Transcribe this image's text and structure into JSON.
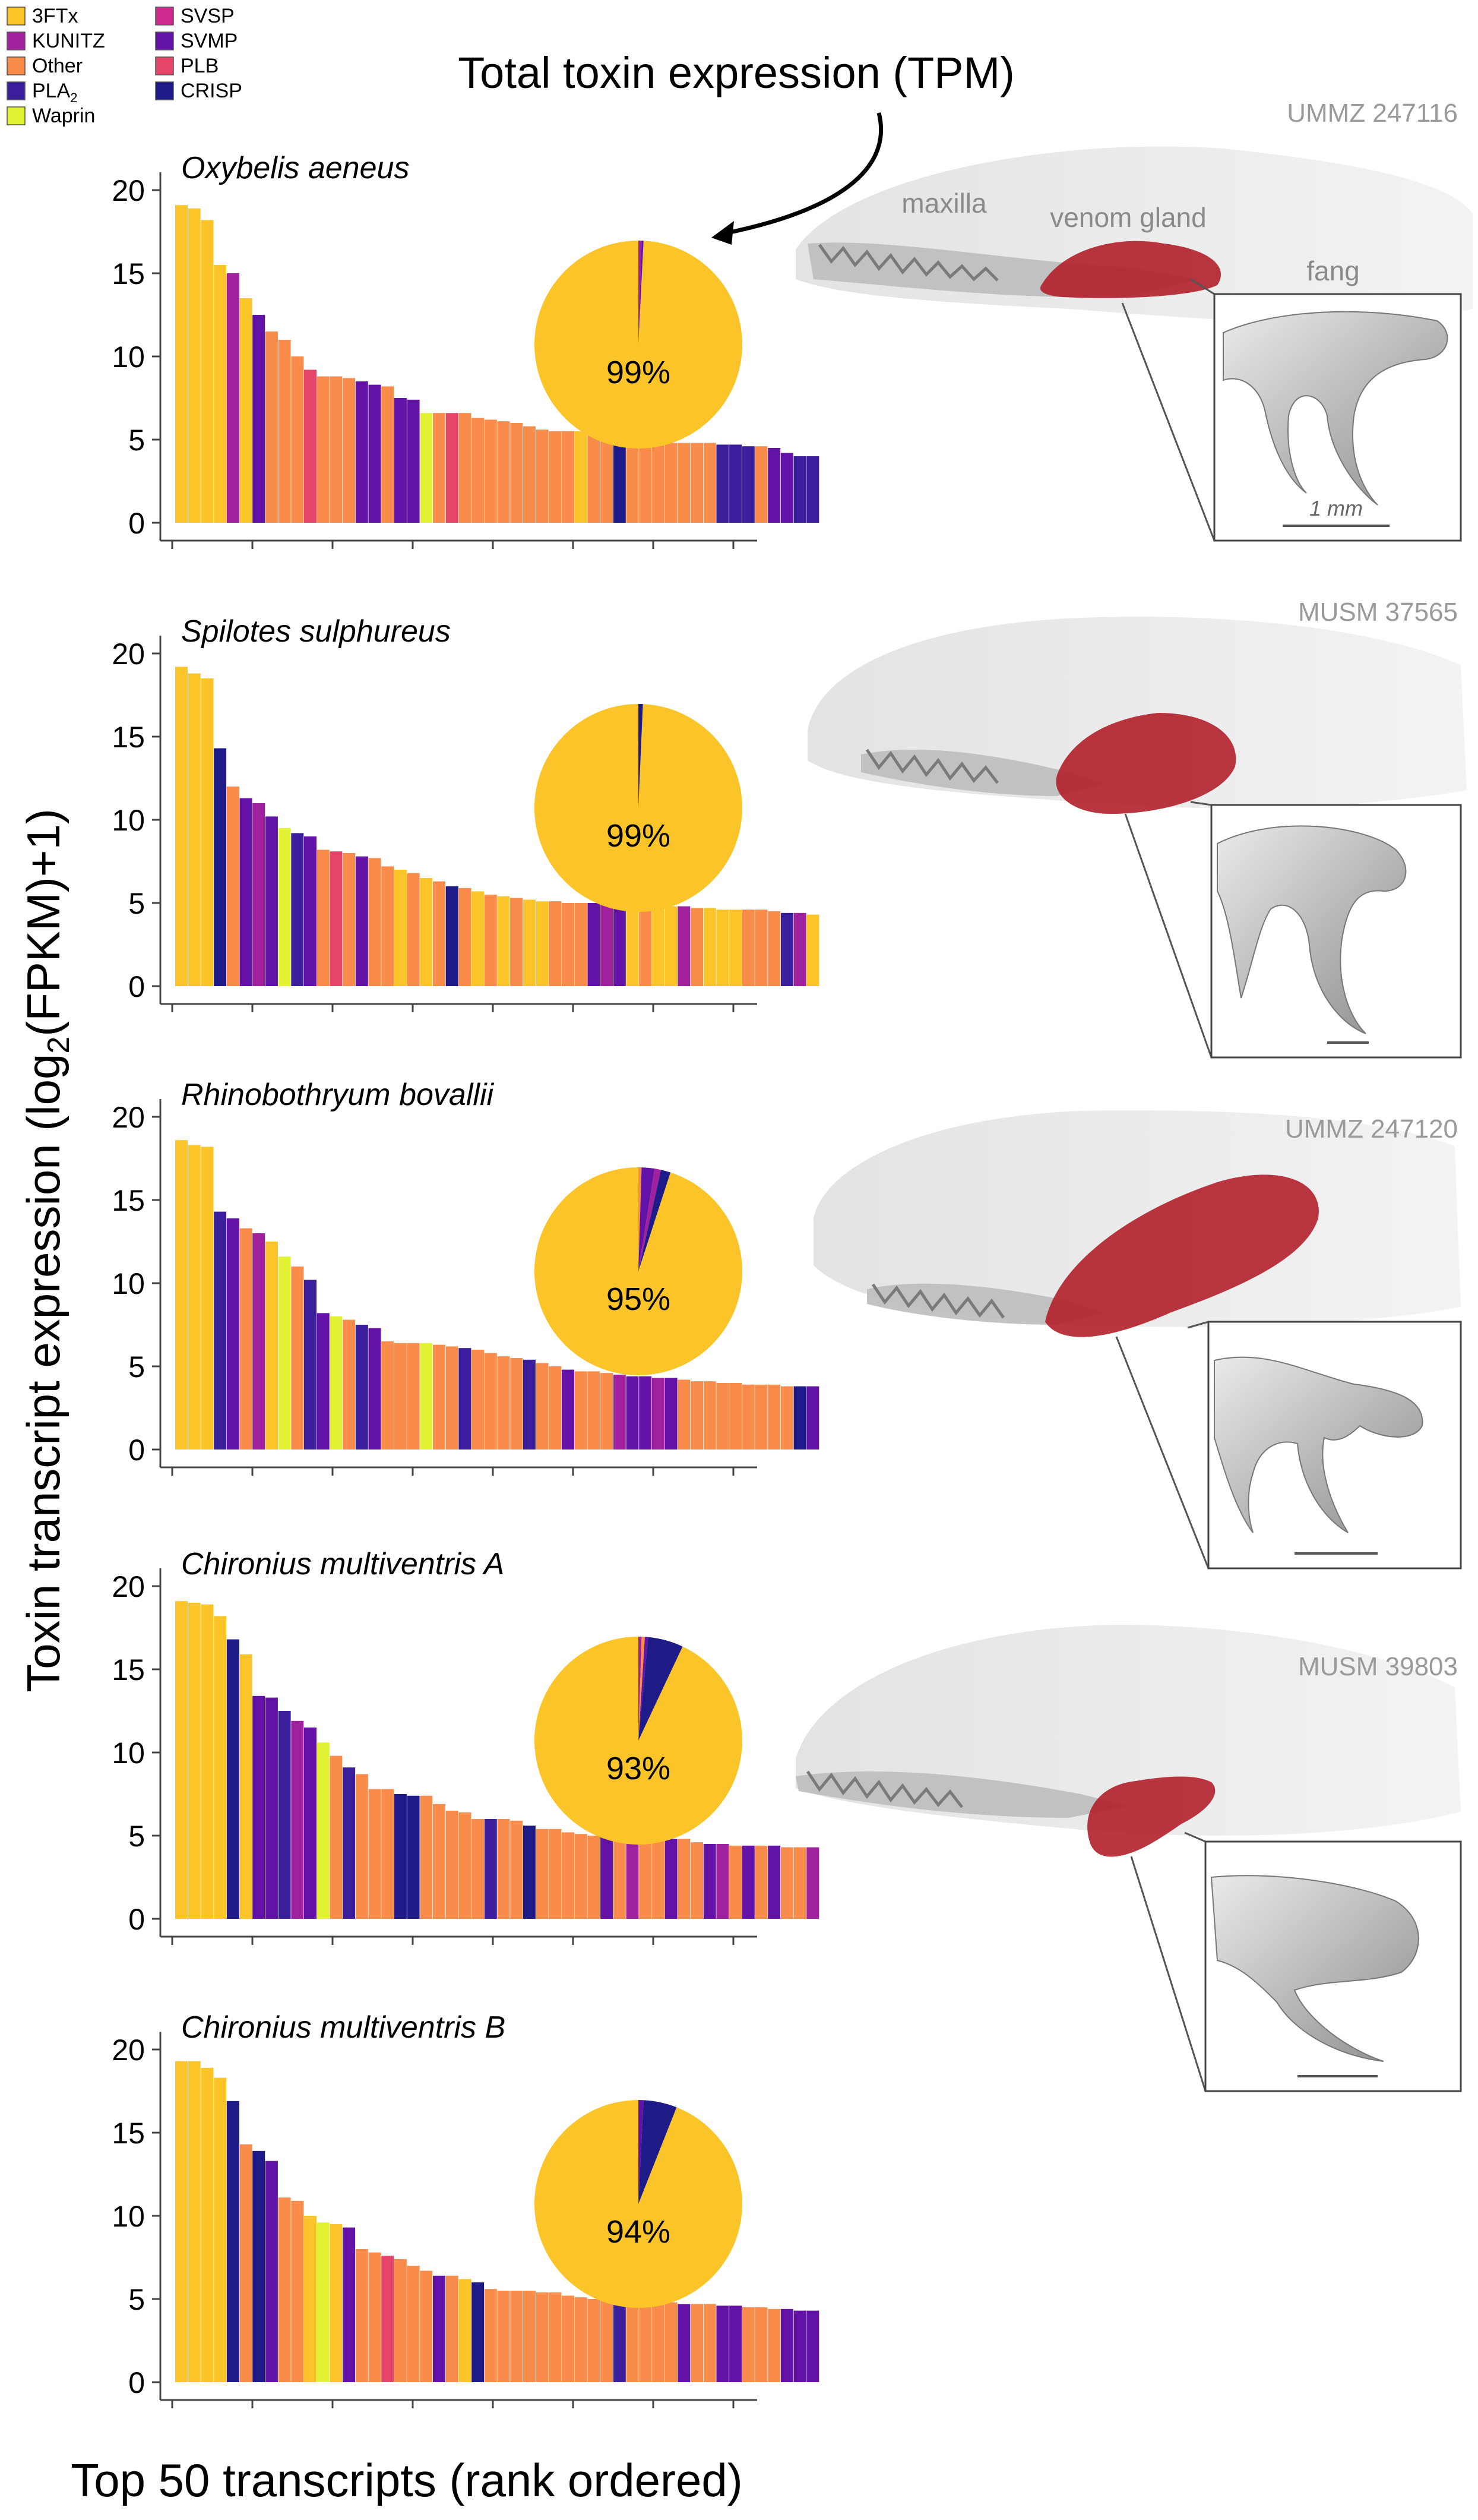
{
  "figure": {
    "y_axis_label_main": "Toxin transcript expression (log",
    "y_axis_label_sub": "2",
    "y_axis_label_tail": "(FPKM)+1)",
    "x_axis_label": "Top 50 transcripts (rank ordered)",
    "pie_annotation": "Total toxin expression (TPM)",
    "head_labels": {
      "maxilla": "maxilla",
      "venom_gland": "venom gland",
      "fang": "fang",
      "scale": "1 mm"
    },
    "specimens": [
      "UMMZ 247116",
      "MUSM 37565",
      "UMMZ 247120",
      "MUSM 39803"
    ]
  },
  "legend": [
    {
      "label": "3FTx",
      "color": "#FBC52A"
    },
    {
      "label": "KUNITZ",
      "color": "#A0219E"
    },
    {
      "label": "Other",
      "color": "#F98C4A"
    },
    {
      "label": "PLA",
      "sub": "2",
      "color": "#3A1E9B"
    },
    {
      "label": "Waprin",
      "color": "#E2F234"
    },
    {
      "label": "SVSP",
      "color": "#CE2A8E"
    },
    {
      "label": "SVMP",
      "color": "#6212A6"
    },
    {
      "label": "PLB",
      "color": "#E44568"
    },
    {
      "label": "CRISP",
      "color": "#1E1A87"
    }
  ],
  "chart_data": [
    {
      "type": "bar",
      "title": "Oxybelis aeneus",
      "categories_note": "Top 50 transcripts (rank ordered)",
      "ylim": [
        0,
        20
      ],
      "yticks": [
        0,
        5,
        10,
        15,
        20
      ],
      "values": [
        19.1,
        18.9,
        18.2,
        15.5,
        15.0,
        13.5,
        12.5,
        11.5,
        11.0,
        10.0,
        9.2,
        8.8,
        8.8,
        8.7,
        8.5,
        8.3,
        8.2,
        7.5,
        7.4,
        6.6,
        6.6,
        6.6,
        6.6,
        6.3,
        6.2,
        6.1,
        6.0,
        5.8,
        5.6,
        5.5,
        5.5,
        5.5,
        5.4,
        5.3,
        5.2,
        5.2,
        5.0,
        4.9,
        4.8,
        4.8,
        4.8,
        4.8,
        4.7,
        4.7,
        4.6,
        4.6,
        4.5,
        4.2,
        4.0,
        4.0
      ],
      "families": [
        "3FTx",
        "3FTx",
        "3FTx",
        "3FTx",
        "KUNITZ",
        "3FTx",
        "SVMP",
        "Other",
        "Other",
        "Other",
        "PLB",
        "Other",
        "Other",
        "Other",
        "SVMP",
        "SVMP",
        "Other",
        "SVMP",
        "SVMP",
        "Waprin",
        "Other",
        "PLB",
        "Other",
        "Other",
        "Other",
        "Other",
        "Other",
        "Other",
        "Other",
        "Other",
        "Other",
        "3FTx",
        "Other",
        "Other",
        "CRISP",
        "Other",
        "Other",
        "Other",
        "Other",
        "Other",
        "Other",
        "Other",
        "PLA2",
        "PLA2",
        "PLA2",
        "Other",
        "SVMP",
        "SVMP",
        "PLA2",
        "PLA2"
      ],
      "pie": {
        "label": "99%",
        "slices": [
          {
            "family": "3FTx",
            "value": 99.2
          },
          {
            "family": "KUNITZ",
            "value": 0.5
          },
          {
            "family": "SVMP",
            "value": 0.3
          }
        ]
      }
    },
    {
      "type": "bar",
      "title": "Spilotes sulphureus",
      "categories_note": "Top 50 transcripts (rank ordered)",
      "ylim": [
        0,
        20
      ],
      "yticks": [
        0,
        5,
        10,
        15,
        20
      ],
      "values": [
        19.2,
        18.8,
        18.5,
        14.3,
        12.0,
        11.3,
        11.0,
        10.2,
        9.5,
        9.2,
        9.0,
        8.2,
        8.1,
        8.0,
        7.8,
        7.7,
        7.2,
        7.0,
        6.8,
        6.5,
        6.3,
        6.0,
        5.9,
        5.7,
        5.5,
        5.4,
        5.3,
        5.2,
        5.1,
        5.1,
        5.0,
        5.0,
        5.0,
        4.9,
        4.9,
        4.9,
        4.9,
        4.8,
        4.8,
        4.8,
        4.7,
        4.7,
        4.6,
        4.6,
        4.6,
        4.6,
        4.5,
        4.4,
        4.4,
        4.3
      ],
      "families": [
        "3FTx",
        "3FTx",
        "3FTx",
        "CRISP",
        "Other",
        "SVMP",
        "KUNITZ",
        "SVMP",
        "Waprin",
        "PLA2",
        "SVMP",
        "Other",
        "PLB",
        "Other",
        "SVMP",
        "Other",
        "Other",
        "3FTx",
        "Other",
        "3FTx",
        "Other",
        "CRISP",
        "Other",
        "3FTx",
        "Other",
        "3FTx",
        "Other",
        "3FTx",
        "3FTx",
        "Other",
        "Other",
        "Other",
        "SVMP",
        "KUNITZ",
        "SVMP",
        "3FTx",
        "Other",
        "3FTx",
        "3FTx",
        "KUNITZ",
        "Other",
        "3FTx",
        "3FTx",
        "3FTx",
        "Other",
        "Other",
        "Other",
        "PLA2",
        "KUNITZ",
        "3FTx"
      ],
      "pie": {
        "label": "99%",
        "slices": [
          {
            "family": "3FTx",
            "value": 99.3
          },
          {
            "family": "CRISP",
            "value": 0.7
          }
        ]
      }
    },
    {
      "type": "bar",
      "title": "Rhinobothryum bovallii",
      "categories_note": "Top 50 transcripts (rank ordered)",
      "ylim": [
        0,
        20
      ],
      "yticks": [
        0,
        5,
        10,
        15,
        20
      ],
      "values": [
        18.6,
        18.3,
        18.2,
        14.3,
        13.9,
        13.3,
        13.0,
        12.5,
        11.6,
        11.0,
        10.2,
        8.2,
        8.0,
        7.8,
        7.5,
        7.3,
        6.5,
        6.4,
        6.4,
        6.4,
        6.3,
        6.2,
        6.1,
        6.0,
        5.8,
        5.6,
        5.5,
        5.4,
        5.2,
        5.0,
        4.8,
        4.7,
        4.7,
        4.6,
        4.5,
        4.4,
        4.4,
        4.3,
        4.3,
        4.2,
        4.1,
        4.1,
        4.0,
        4.0,
        3.9,
        3.9,
        3.9,
        3.8,
        3.8,
        3.8
      ],
      "families": [
        "3FTx",
        "3FTx",
        "3FTx",
        "PLA2",
        "SVMP",
        "Other",
        "KUNITZ",
        "3FTx",
        "Waprin",
        "Other",
        "PLA2",
        "SVMP",
        "Waprin",
        "Other",
        "PLA2",
        "SVMP",
        "Other",
        "Other",
        "Other",
        "Waprin",
        "Other",
        "Other",
        "PLA2",
        "Other",
        "Other",
        "Other",
        "Other",
        "PLA2",
        "Other",
        "Other",
        "SVMP",
        "Other",
        "Other",
        "Other",
        "KUNITZ",
        "SVMP",
        "SVMP",
        "KUNITZ",
        "SVMP",
        "Other",
        "Other",
        "Other",
        "Other",
        "Other",
        "Other",
        "Other",
        "Other",
        "Other",
        "CRISP",
        "SVMP"
      ],
      "pie": {
        "label": "95%",
        "slices": [
          {
            "family": "3FTx",
            "value": 95.0
          },
          {
            "family": "Other",
            "value": 0.5
          },
          {
            "family": "SVMP",
            "value": 2.0
          },
          {
            "family": "KUNITZ",
            "value": 1.0
          },
          {
            "family": "CRISP",
            "value": 1.5
          }
        ]
      }
    },
    {
      "type": "bar",
      "title": "Chironius multiventris A",
      "categories_note": "Top 50 transcripts (rank ordered)",
      "ylim": [
        0,
        20
      ],
      "yticks": [
        0,
        5,
        10,
        15,
        20
      ],
      "values": [
        19.1,
        19.0,
        18.9,
        18.2,
        16.8,
        15.9,
        13.4,
        13.3,
        12.5,
        11.9,
        11.5,
        10.6,
        9.8,
        9.1,
        8.7,
        7.8,
        7.8,
        7.5,
        7.4,
        7.4,
        6.9,
        6.5,
        6.4,
        6.0,
        6.0,
        6.0,
        5.9,
        5.6,
        5.4,
        5.4,
        5.2,
        5.1,
        5.0,
        5.0,
        5.0,
        4.9,
        4.9,
        4.9,
        4.8,
        4.8,
        4.6,
        4.5,
        4.5,
        4.4,
        4.4,
        4.4,
        4.4,
        4.3,
        4.3,
        4.3
      ],
      "families": [
        "3FTx",
        "3FTx",
        "3FTx",
        "3FTx",
        "CRISP",
        "3FTx",
        "SVMP",
        "SVMP",
        "PLA2",
        "KUNITZ",
        "SVMP",
        "Waprin",
        "Other",
        "PLA2",
        "Other",
        "Other",
        "Other",
        "CRISP",
        "CRISP",
        "Other",
        "Other",
        "Other",
        "Other",
        "Other",
        "PLA2",
        "Other",
        "Other",
        "CRISP",
        "Other",
        "Other",
        "Other",
        "Other",
        "Other",
        "SVMP",
        "Other",
        "KUNITZ",
        "Other",
        "Other",
        "SVMP",
        "Other",
        "Other",
        "SVMP",
        "KUNITZ",
        "Other",
        "SVMP",
        "Other",
        "SVMP",
        "Other",
        "Other",
        "KUNITZ"
      ],
      "pie": {
        "label": "93%",
        "slices": [
          {
            "family": "3FTx",
            "value": 93.0
          },
          {
            "family": "KUNITZ",
            "value": 0.5
          },
          {
            "family": "Other",
            "value": 0.5
          },
          {
            "family": "SVMP",
            "value": 0.5
          },
          {
            "family": "CRISP",
            "value": 5.5
          }
        ]
      }
    },
    {
      "type": "bar",
      "title": "Chironius multiventris B",
      "categories_note": "Top 50 transcripts (rank ordered)",
      "ylim": [
        0,
        20
      ],
      "yticks": [
        0,
        5,
        10,
        15,
        20
      ],
      "values": [
        19.3,
        19.3,
        18.9,
        18.3,
        16.9,
        14.3,
        13.9,
        13.3,
        11.1,
        10.9,
        10.0,
        9.6,
        9.5,
        9.3,
        8.0,
        7.8,
        7.6,
        7.4,
        7.0,
        6.7,
        6.4,
        6.4,
        6.2,
        6.0,
        5.6,
        5.5,
        5.5,
        5.5,
        5.4,
        5.4,
        5.2,
        5.1,
        5.0,
        5.0,
        5.0,
        4.9,
        4.9,
        4.8,
        4.8,
        4.7,
        4.7,
        4.7,
        4.6,
        4.6,
        4.5,
        4.5,
        4.4,
        4.4,
        4.3,
        4.3
      ],
      "families": [
        "3FTx",
        "3FTx",
        "3FTx",
        "3FTx",
        "CRISP",
        "Other",
        "CRISP",
        "SVMP",
        "Other",
        "Other",
        "3FTx",
        "Waprin",
        "3FTx",
        "SVMP",
        "Other",
        "Other",
        "PLB",
        "Other",
        "Other",
        "Other",
        "SVMP",
        "Other",
        "3FTx",
        "CRISP",
        "Other",
        "Other",
        "Other",
        "Other",
        "Other",
        "Other",
        "Other",
        "Other",
        "Other",
        "Other",
        "PLA2",
        "Other",
        "Other",
        "Other",
        "Other",
        "SVMP",
        "Other",
        "Other",
        "SVMP",
        "SVMP",
        "Other",
        "Other",
        "Other",
        "SVMP",
        "SVMP",
        "SVMP"
      ],
      "pie": {
        "label": "94%",
        "slices": [
          {
            "family": "3FTx",
            "value": 94.0
          },
          {
            "family": "SVMP",
            "value": 0.8
          },
          {
            "family": "CRISP",
            "value": 5.2
          }
        ]
      }
    }
  ]
}
